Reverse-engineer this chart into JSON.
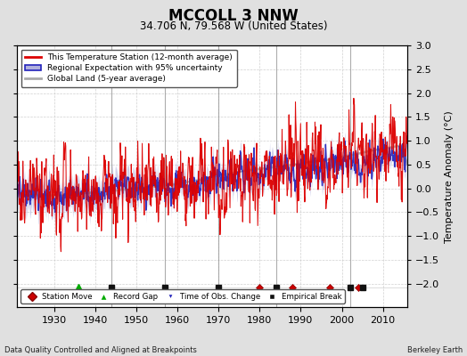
{
  "title": "MCCOLL 3 NNW",
  "subtitle": "34.706 N, 79.568 W (United States)",
  "ylabel": "Temperature Anomaly (°C)",
  "xlabel_left": "Data Quality Controlled and Aligned at Breakpoints",
  "xlabel_right": "Berkeley Earth",
  "ylim": [
    -2.5,
    3.0
  ],
  "xlim": [
    1921,
    2016
  ],
  "yticks": [
    -2,
    -1.5,
    -1,
    -0.5,
    0,
    0.5,
    1,
    1.5,
    2,
    2.5,
    3
  ],
  "xticks": [
    1930,
    1940,
    1950,
    1960,
    1970,
    1980,
    1990,
    2000,
    2010
  ],
  "bg_color": "#e0e0e0",
  "plot_bg_color": "#ffffff",
  "grid_color": "#cccccc",
  "station_color": "#dd0000",
  "regional_color": "#2222bb",
  "regional_fill_color": "#b0b0dd",
  "global_color": "#aaaaaa",
  "vertical_line_color": "#999999",
  "vertical_lines": [
    1944,
    1957,
    1970,
    1984,
    2002
  ],
  "event_markers": {
    "station_move": [
      1980,
      1988,
      1997,
      2004
    ],
    "record_gap": [
      1936
    ],
    "time_obs_change": [],
    "empirical_break": [
      1944,
      1957,
      1970,
      1984,
      2002,
      2005
    ]
  },
  "event_y": -2.08,
  "figsize": [
    5.24,
    4.0
  ],
  "dpi": 100
}
